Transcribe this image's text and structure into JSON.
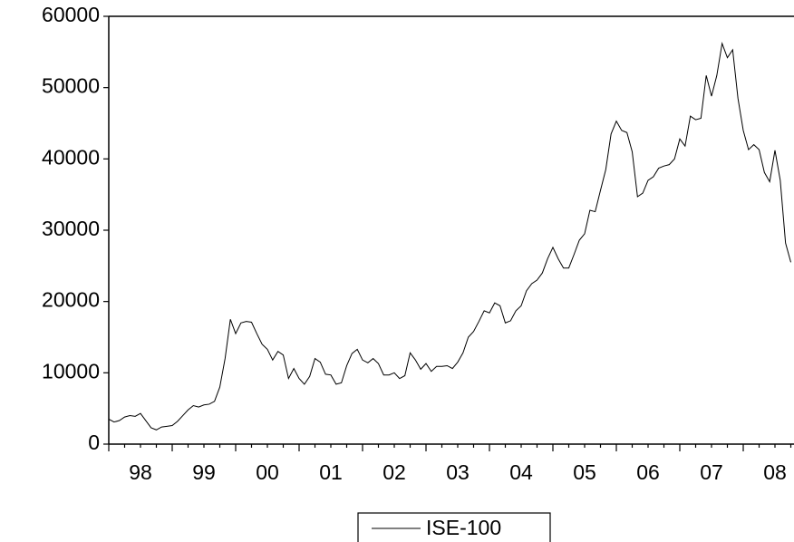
{
  "chart_data": {
    "type": "line",
    "categories": [
      null,
      null,
      null,
      null,
      null,
      null,
      "98",
      null,
      null,
      null,
      null,
      null,
      null,
      null,
      null,
      null,
      null,
      null,
      "99",
      null,
      null,
      null,
      null,
      null,
      null,
      null,
      null,
      null,
      null,
      null,
      "00",
      null,
      null,
      null,
      null,
      null,
      null,
      null,
      null,
      null,
      null,
      null,
      "01",
      null,
      null,
      null,
      null,
      null,
      null,
      null,
      null,
      null,
      null,
      null,
      "02",
      null,
      null,
      null,
      null,
      null,
      null,
      null,
      null,
      null,
      null,
      null,
      "03",
      null,
      null,
      null,
      null,
      null,
      null,
      null,
      null,
      null,
      null,
      null,
      "04",
      null,
      null,
      null,
      null,
      null,
      null,
      null,
      null,
      null,
      null,
      null,
      "05",
      null,
      null,
      null,
      null,
      null,
      null,
      null,
      null,
      null,
      null,
      null,
      "06",
      null,
      null,
      null,
      null,
      null,
      null,
      null,
      null,
      null,
      null,
      null,
      "07",
      null,
      null,
      null,
      null,
      null,
      null,
      null,
      null,
      null,
      null,
      null,
      "08",
      null,
      null,
      null
    ],
    "series": [
      {
        "name": "ISE-100",
        "color": "#000000",
        "values": [
          3500,
          3100,
          3300,
          3800,
          4000,
          3900,
          4300,
          3300,
          2300,
          2000,
          2400,
          2500,
          2600,
          3200,
          4000,
          4800,
          5400,
          5200,
          5500,
          5600,
          6000,
          8000,
          12000,
          17500,
          15500,
          17000,
          17200,
          17100,
          15500,
          14000,
          13300,
          11800,
          13000,
          12500,
          9200,
          10600,
          9200,
          8400,
          9500,
          12000,
          11500,
          9800,
          9700,
          8400,
          8600,
          11000,
          12700,
          13300,
          11800,
          11400,
          12000,
          11300,
          9700,
          9700,
          10000,
          9200,
          9600,
          12800,
          11800,
          10500,
          11300,
          10200,
          10900,
          10900,
          11000,
          10600,
          11500,
          12800,
          15000,
          15800,
          17200,
          18700,
          18400,
          19800,
          19400,
          17000,
          17300,
          18700,
          19400,
          21500,
          22500,
          23000,
          24000,
          26000,
          27600,
          26000,
          24700,
          24700,
          26600,
          28600,
          29500,
          32800,
          32600,
          35600,
          38500,
          43500,
          45300,
          44000,
          43700,
          41000,
          34700,
          35200,
          37000,
          37500,
          38700,
          39000,
          39200,
          40000,
          42800,
          41800,
          46000,
          45500,
          45700,
          51700,
          48800,
          51700,
          56200,
          54200,
          55300,
          48500,
          44000,
          41300,
          42000,
          41300,
          38100,
          36800,
          41200,
          37000,
          28200,
          25500
        ]
      }
    ],
    "ylim": [
      0,
      60000
    ],
    "yticks": [
      0,
      10000,
      20000,
      30000,
      40000,
      50000,
      60000
    ],
    "grid": false
  }
}
